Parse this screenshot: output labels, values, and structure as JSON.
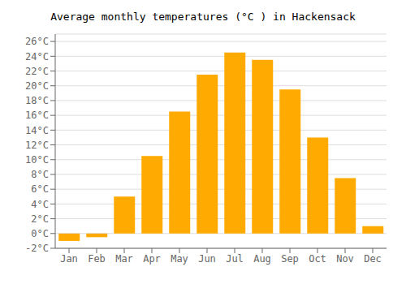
{
  "chart_data": {
    "type": "bar",
    "title": "Average monthly temperatures (°C ) in Hackensack",
    "categories": [
      "Jan",
      "Feb",
      "Mar",
      "Apr",
      "May",
      "Jun",
      "Jul",
      "Aug",
      "Sep",
      "Oct",
      "Nov",
      "Dec"
    ],
    "values": [
      -1.0,
      -0.5,
      5.0,
      10.5,
      16.5,
      21.5,
      24.5,
      23.5,
      19.5,
      13.0,
      7.5,
      1.0
    ],
    "color": "#FFAA00",
    "ylim": [
      -2,
      27
    ],
    "yticks": [
      {
        "value": -2,
        "label": "-2°C"
      },
      {
        "value": 0,
        "label": "0°C"
      },
      {
        "value": 2,
        "label": "2°C"
      },
      {
        "value": 4,
        "label": "4°C"
      },
      {
        "value": 6,
        "label": "6°C"
      },
      {
        "value": 8,
        "label": "8°C"
      },
      {
        "value": 10,
        "label": "10°C"
      },
      {
        "value": 12,
        "label": "12°C"
      },
      {
        "value": 14,
        "label": "14°C"
      },
      {
        "value": 16,
        "label": "16°C"
      },
      {
        "value": 18,
        "label": "18°C"
      },
      {
        "value": 20,
        "label": "20°C"
      },
      {
        "value": 22,
        "label": "22°C"
      },
      {
        "value": 24,
        "label": "24°C"
      },
      {
        "value": 26,
        "label": "26°C"
      }
    ],
    "grid": true
  }
}
